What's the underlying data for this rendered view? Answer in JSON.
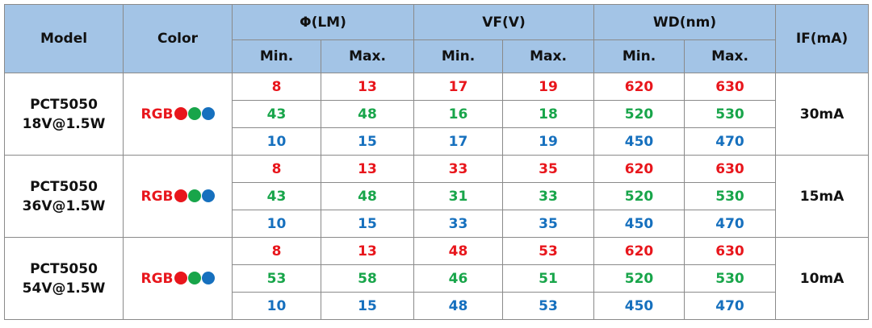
{
  "header": {
    "model": "Model",
    "color": "Color",
    "groups": [
      "Φ(LM)",
      "VF(V)",
      "WD(nm)"
    ],
    "sub": [
      "Min.",
      "Max.",
      "Min.",
      "Max.",
      "Min.",
      "Max."
    ],
    "current": "IF(mA)"
  },
  "line_colors": [
    "#e8161c",
    "#18a54a",
    "#1670be"
  ],
  "rows": [
    {
      "model": [
        "PCT5050",
        "18V@1.5W"
      ],
      "color": "RGB",
      "values": [
        [
          "8",
          "13",
          "17",
          "19",
          "620",
          "630"
        ],
        [
          "43",
          "48",
          "16",
          "18",
          "520",
          "530"
        ],
        [
          "10",
          "15",
          "17",
          "19",
          "450",
          "470"
        ]
      ],
      "current": "30mA"
    },
    {
      "model": [
        "PCT5050",
        "36V@1.5W"
      ],
      "color": "RGB",
      "values": [
        [
          "8",
          "13",
          "33",
          "35",
          "620",
          "630"
        ],
        [
          "43",
          "48",
          "31",
          "33",
          "520",
          "530"
        ],
        [
          "10",
          "15",
          "33",
          "35",
          "450",
          "470"
        ]
      ],
      "current": "15mA"
    },
    {
      "model": [
        "PCT5050",
        "54V@1.5W"
      ],
      "color": "RGB",
      "values": [
        [
          "8",
          "13",
          "48",
          "53",
          "620",
          "630"
        ],
        [
          "53",
          "58",
          "46",
          "51",
          "520",
          "530"
        ],
        [
          "10",
          "15",
          "48",
          "53",
          "450",
          "470"
        ]
      ],
      "current": "10mA"
    }
  ]
}
